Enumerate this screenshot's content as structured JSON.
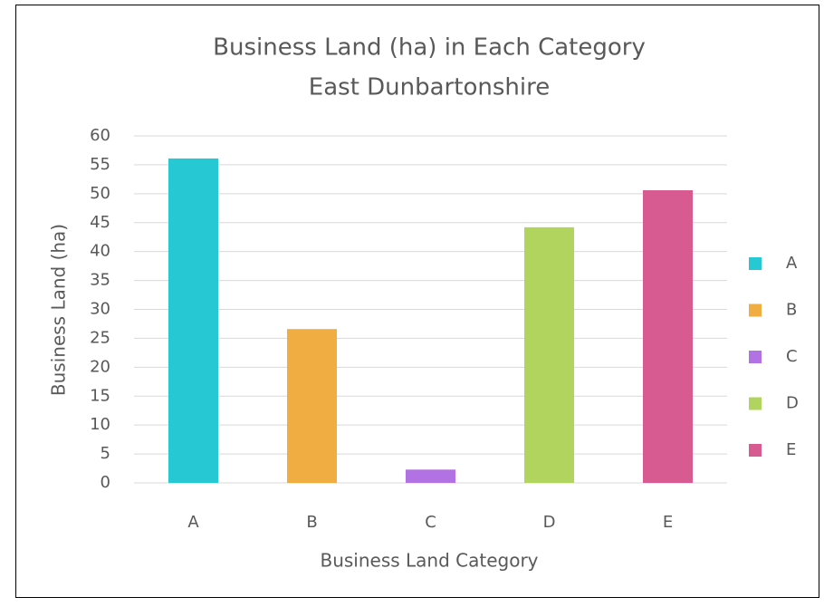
{
  "chart_data": {
    "type": "bar",
    "title": "Business Land (ha) in Each Category",
    "subtitle": "East Dunbartonshire",
    "x_label": "Business Land Category",
    "y_label": "Business Land (ha)",
    "categories": [
      "A",
      "B",
      "C",
      "D",
      "E"
    ],
    "values": [
      56.1,
      26.6,
      2.3,
      44.2,
      50.6
    ],
    "colors": [
      "#26c9d3",
      "#efad42",
      "#b372e3",
      "#b1d45e",
      "#d75b91"
    ],
    "ylim": [
      0,
      60
    ],
    "yticks": [
      0,
      5,
      10,
      15,
      20,
      25,
      30,
      35,
      40,
      45,
      50,
      55,
      60
    ],
    "grid": true,
    "legend": "right"
  }
}
